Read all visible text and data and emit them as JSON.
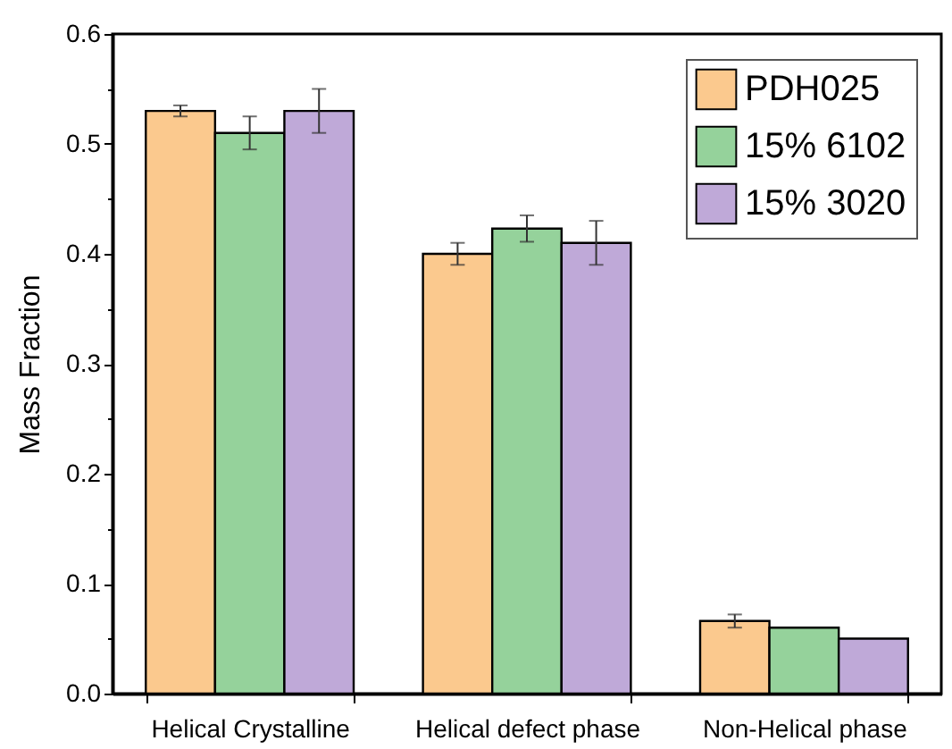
{
  "chart_data": {
    "type": "bar",
    "ylabel": "Mass Fraction",
    "categories": [
      "Helical Crystalline",
      "Helical defect phase",
      "Non-Helical phase"
    ],
    "series": [
      {
        "name": "PDH025",
        "color": "#fbc98e",
        "values": [
          0.53,
          0.4,
          0.066
        ],
        "errors": [
          0.005,
          0.01,
          0.006
        ]
      },
      {
        "name": "15% 6102",
        "color": "#95d29b",
        "values": [
          0.51,
          0.423,
          0.06
        ],
        "errors": [
          0.015,
          0.012,
          null
        ]
      },
      {
        "name": "15% 3020",
        "color": "#bfa9d8",
        "values": [
          0.53,
          0.41,
          0.05
        ],
        "errors": [
          0.02,
          0.02,
          null
        ]
      }
    ],
    "ylim": [
      0,
      0.6
    ],
    "yticks": [
      {
        "value": 0,
        "label": "0.0"
      },
      {
        "value": 0.05,
        "label": null
      },
      {
        "value": 0.1,
        "label": "0.1"
      },
      {
        "value": 0.15,
        "label": null
      },
      {
        "value": 0.2,
        "label": "0.2"
      },
      {
        "value": 0.25,
        "label": null
      },
      {
        "value": 0.3,
        "label": "0.3"
      },
      {
        "value": 0.35,
        "label": null
      },
      {
        "value": 0.4,
        "label": "0.4"
      },
      {
        "value": 0.45,
        "label": null
      },
      {
        "value": 0.5,
        "label": "0.5"
      },
      {
        "value": 0.55,
        "label": null
      },
      {
        "value": 0.6,
        "label": "0.6"
      }
    ],
    "legend": "top right",
    "grid": false
  }
}
